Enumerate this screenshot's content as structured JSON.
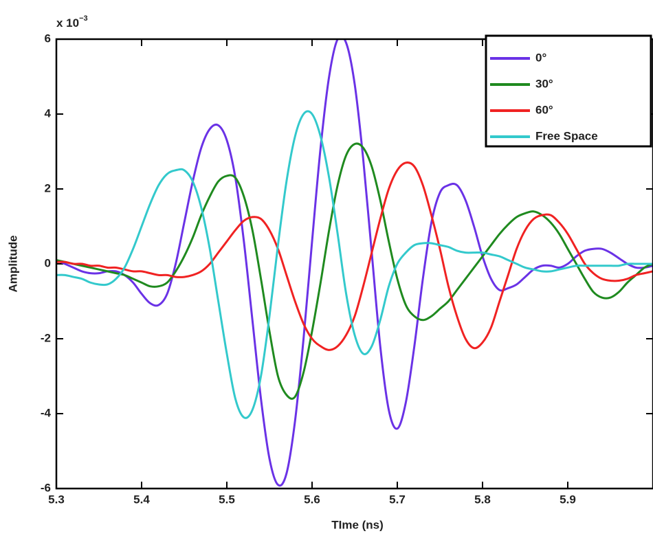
{
  "chart_data": {
    "type": "line",
    "y_multiplier": "x 10",
    "y_exponent": "−3",
    "x_label": "TIme (ns)",
    "y_label": "Amplitude",
    "xlim": [
      5.3,
      6.0
    ],
    "ylim": [
      -6,
      6
    ],
    "xticks": [
      5.3,
      5.4,
      5.5,
      5.6,
      5.7,
      5.8,
      5.9
    ],
    "yticks": [
      -6,
      -4,
      -2,
      0,
      2,
      4,
      6
    ],
    "legend": "upper right",
    "x": [
      5.3,
      5.31,
      5.32,
      5.33,
      5.34,
      5.35,
      5.36,
      5.37,
      5.38,
      5.39,
      5.4,
      5.41,
      5.42,
      5.43,
      5.44,
      5.45,
      5.46,
      5.47,
      5.48,
      5.49,
      5.5,
      5.51,
      5.52,
      5.53,
      5.54,
      5.55,
      5.56,
      5.57,
      5.58,
      5.59,
      5.6,
      5.61,
      5.62,
      5.63,
      5.64,
      5.65,
      5.66,
      5.67,
      5.68,
      5.69,
      5.7,
      5.71,
      5.72,
      5.73,
      5.74,
      5.75,
      5.76,
      5.77,
      5.78,
      5.79,
      5.8,
      5.81,
      5.82,
      5.83,
      5.84,
      5.85,
      5.86,
      5.87,
      5.88,
      5.89,
      5.9,
      5.91,
      5.92,
      5.93,
      5.94,
      5.95,
      5.96,
      5.97,
      5.98,
      5.99,
      6.0
    ],
    "series": [
      {
        "name": "0°",
        "color": "#6a32e6",
        "values": [
          0.1,
          0,
          -0.1,
          -0.2,
          -0.25,
          -0.25,
          -0.2,
          -0.2,
          -0.3,
          -0.5,
          -0.8,
          -1.05,
          -1.1,
          -0.8,
          0,
          1.1,
          2.2,
          3.1,
          3.6,
          3.7,
          3.3,
          2.3,
          0.6,
          -1.5,
          -3.6,
          -5.2,
          -5.9,
          -5.6,
          -4.2,
          -2,
          0.6,
          3.1,
          5.0,
          6.0,
          5.9,
          4.8,
          2.8,
          0.3,
          -2.2,
          -3.9,
          -4.4,
          -3.7,
          -2.2,
          -0.4,
          1.1,
          1.9,
          2.1,
          2.1,
          1.7,
          1.0,
          0.2,
          -0.4,
          -0.7,
          -0.65,
          -0.55,
          -0.35,
          -0.15,
          -0.05,
          -0.05,
          -0.1,
          0,
          0.2,
          0.35,
          0.4,
          0.4,
          0.3,
          0.15,
          0,
          -0.1,
          -0.1,
          -0.05
        ]
      },
      {
        "name": "30°",
        "color": "#1f8a1f",
        "values": [
          0.1,
          0.05,
          0,
          -0.05,
          -0.1,
          -0.15,
          -0.2,
          -0.25,
          -0.3,
          -0.4,
          -0.5,
          -0.6,
          -0.6,
          -0.5,
          -0.2,
          0.2,
          0.7,
          1.3,
          1.8,
          2.2,
          2.35,
          2.3,
          1.8,
          0.9,
          -0.4,
          -1.8,
          -3.0,
          -3.5,
          -3.55,
          -2.9,
          -1.8,
          -0.5,
          0.9,
          2.1,
          2.9,
          3.2,
          3.1,
          2.6,
          1.7,
          0.6,
          -0.4,
          -1.1,
          -1.4,
          -1.5,
          -1.4,
          -1.2,
          -1.0,
          -0.7,
          -0.4,
          -0.1,
          0.2,
          0.5,
          0.8,
          1.05,
          1.25,
          1.35,
          1.4,
          1.3,
          1.1,
          0.8,
          0.4,
          0,
          -0.4,
          -0.75,
          -0.9,
          -0.9,
          -0.75,
          -0.5,
          -0.3,
          -0.1,
          0
        ]
      },
      {
        "name": "60°",
        "color": "#f02222",
        "values": [
          0.05,
          0.05,
          0,
          0,
          -0.05,
          -0.05,
          -0.1,
          -0.1,
          -0.15,
          -0.2,
          -0.2,
          -0.25,
          -0.3,
          -0.3,
          -0.35,
          -0.35,
          -0.3,
          -0.2,
          0,
          0.3,
          0.6,
          0.9,
          1.15,
          1.25,
          1.2,
          0.9,
          0.4,
          -0.3,
          -1.0,
          -1.6,
          -2.0,
          -2.2,
          -2.3,
          -2.2,
          -1.9,
          -1.4,
          -0.6,
          0.3,
          1.2,
          2.0,
          2.5,
          2.7,
          2.6,
          2.1,
          1.3,
          0.4,
          -0.6,
          -1.4,
          -2.0,
          -2.25,
          -2.1,
          -1.7,
          -1.0,
          -0.3,
          0.4,
          0.9,
          1.2,
          1.3,
          1.3,
          1.1,
          0.8,
          0.4,
          0,
          -0.25,
          -0.4,
          -0.45,
          -0.45,
          -0.4,
          -0.3,
          -0.25,
          -0.2
        ]
      },
      {
        "name": "Free Space",
        "color": "#33c9cc",
        "values": [
          -0.3,
          -0.3,
          -0.35,
          -0.4,
          -0.5,
          -0.55,
          -0.55,
          -0.4,
          -0.1,
          0.4,
          1.0,
          1.6,
          2.1,
          2.4,
          2.5,
          2.5,
          2.2,
          1.5,
          0.4,
          -1.0,
          -2.4,
          -3.6,
          -4.1,
          -3.9,
          -3.0,
          -1.4,
          0.5,
          2.2,
          3.4,
          4.0,
          4.0,
          3.4,
          2.3,
          0.8,
          -0.8,
          -1.9,
          -2.4,
          -2.2,
          -1.5,
          -0.6,
          0,
          0.3,
          0.5,
          0.55,
          0.55,
          0.5,
          0.45,
          0.35,
          0.3,
          0.3,
          0.3,
          0.25,
          0.2,
          0.1,
          0,
          -0.1,
          -0.15,
          -0.2,
          -0.2,
          -0.15,
          -0.1,
          -0.05,
          -0.05,
          -0.05,
          -0.05,
          -0.05,
          -0.05,
          0,
          0,
          0,
          0
        ]
      }
    ]
  }
}
